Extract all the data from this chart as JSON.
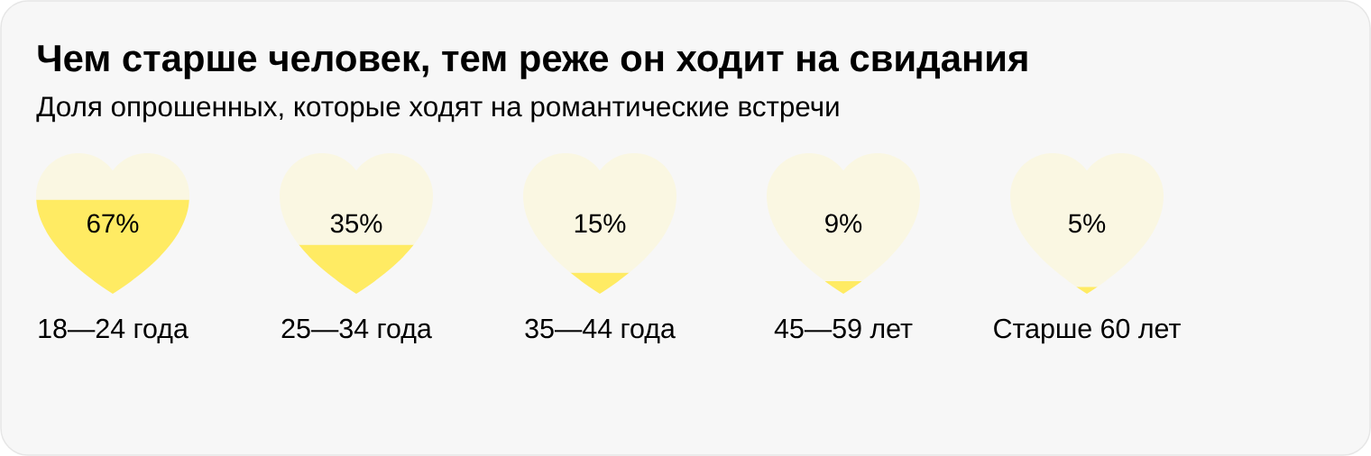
{
  "chart_data": {
    "type": "bar",
    "title": "Чем старше человек, тем реже он ходит на свидания",
    "subtitle": "Доля опрошенных, которые ходят на романтические встречи",
    "categories": [
      "18—24 года",
      "25—34 года",
      "35—44 года",
      "45—59 лет",
      "Старше 60 лет"
    ],
    "stacked": true,
    "series": [
      {
        "color": "#ffeb63",
        "values": [
          67,
          35,
          15,
          9,
          5
        ],
        "value_labels": [
          "67%",
          "35%",
          "15%",
          "9%",
          "5%"
        ]
      },
      {
        "color": "#faf7e2",
        "values": [
          33,
          65,
          85,
          91,
          95
        ]
      }
    ],
    "tick_labels": "x"
  }
}
